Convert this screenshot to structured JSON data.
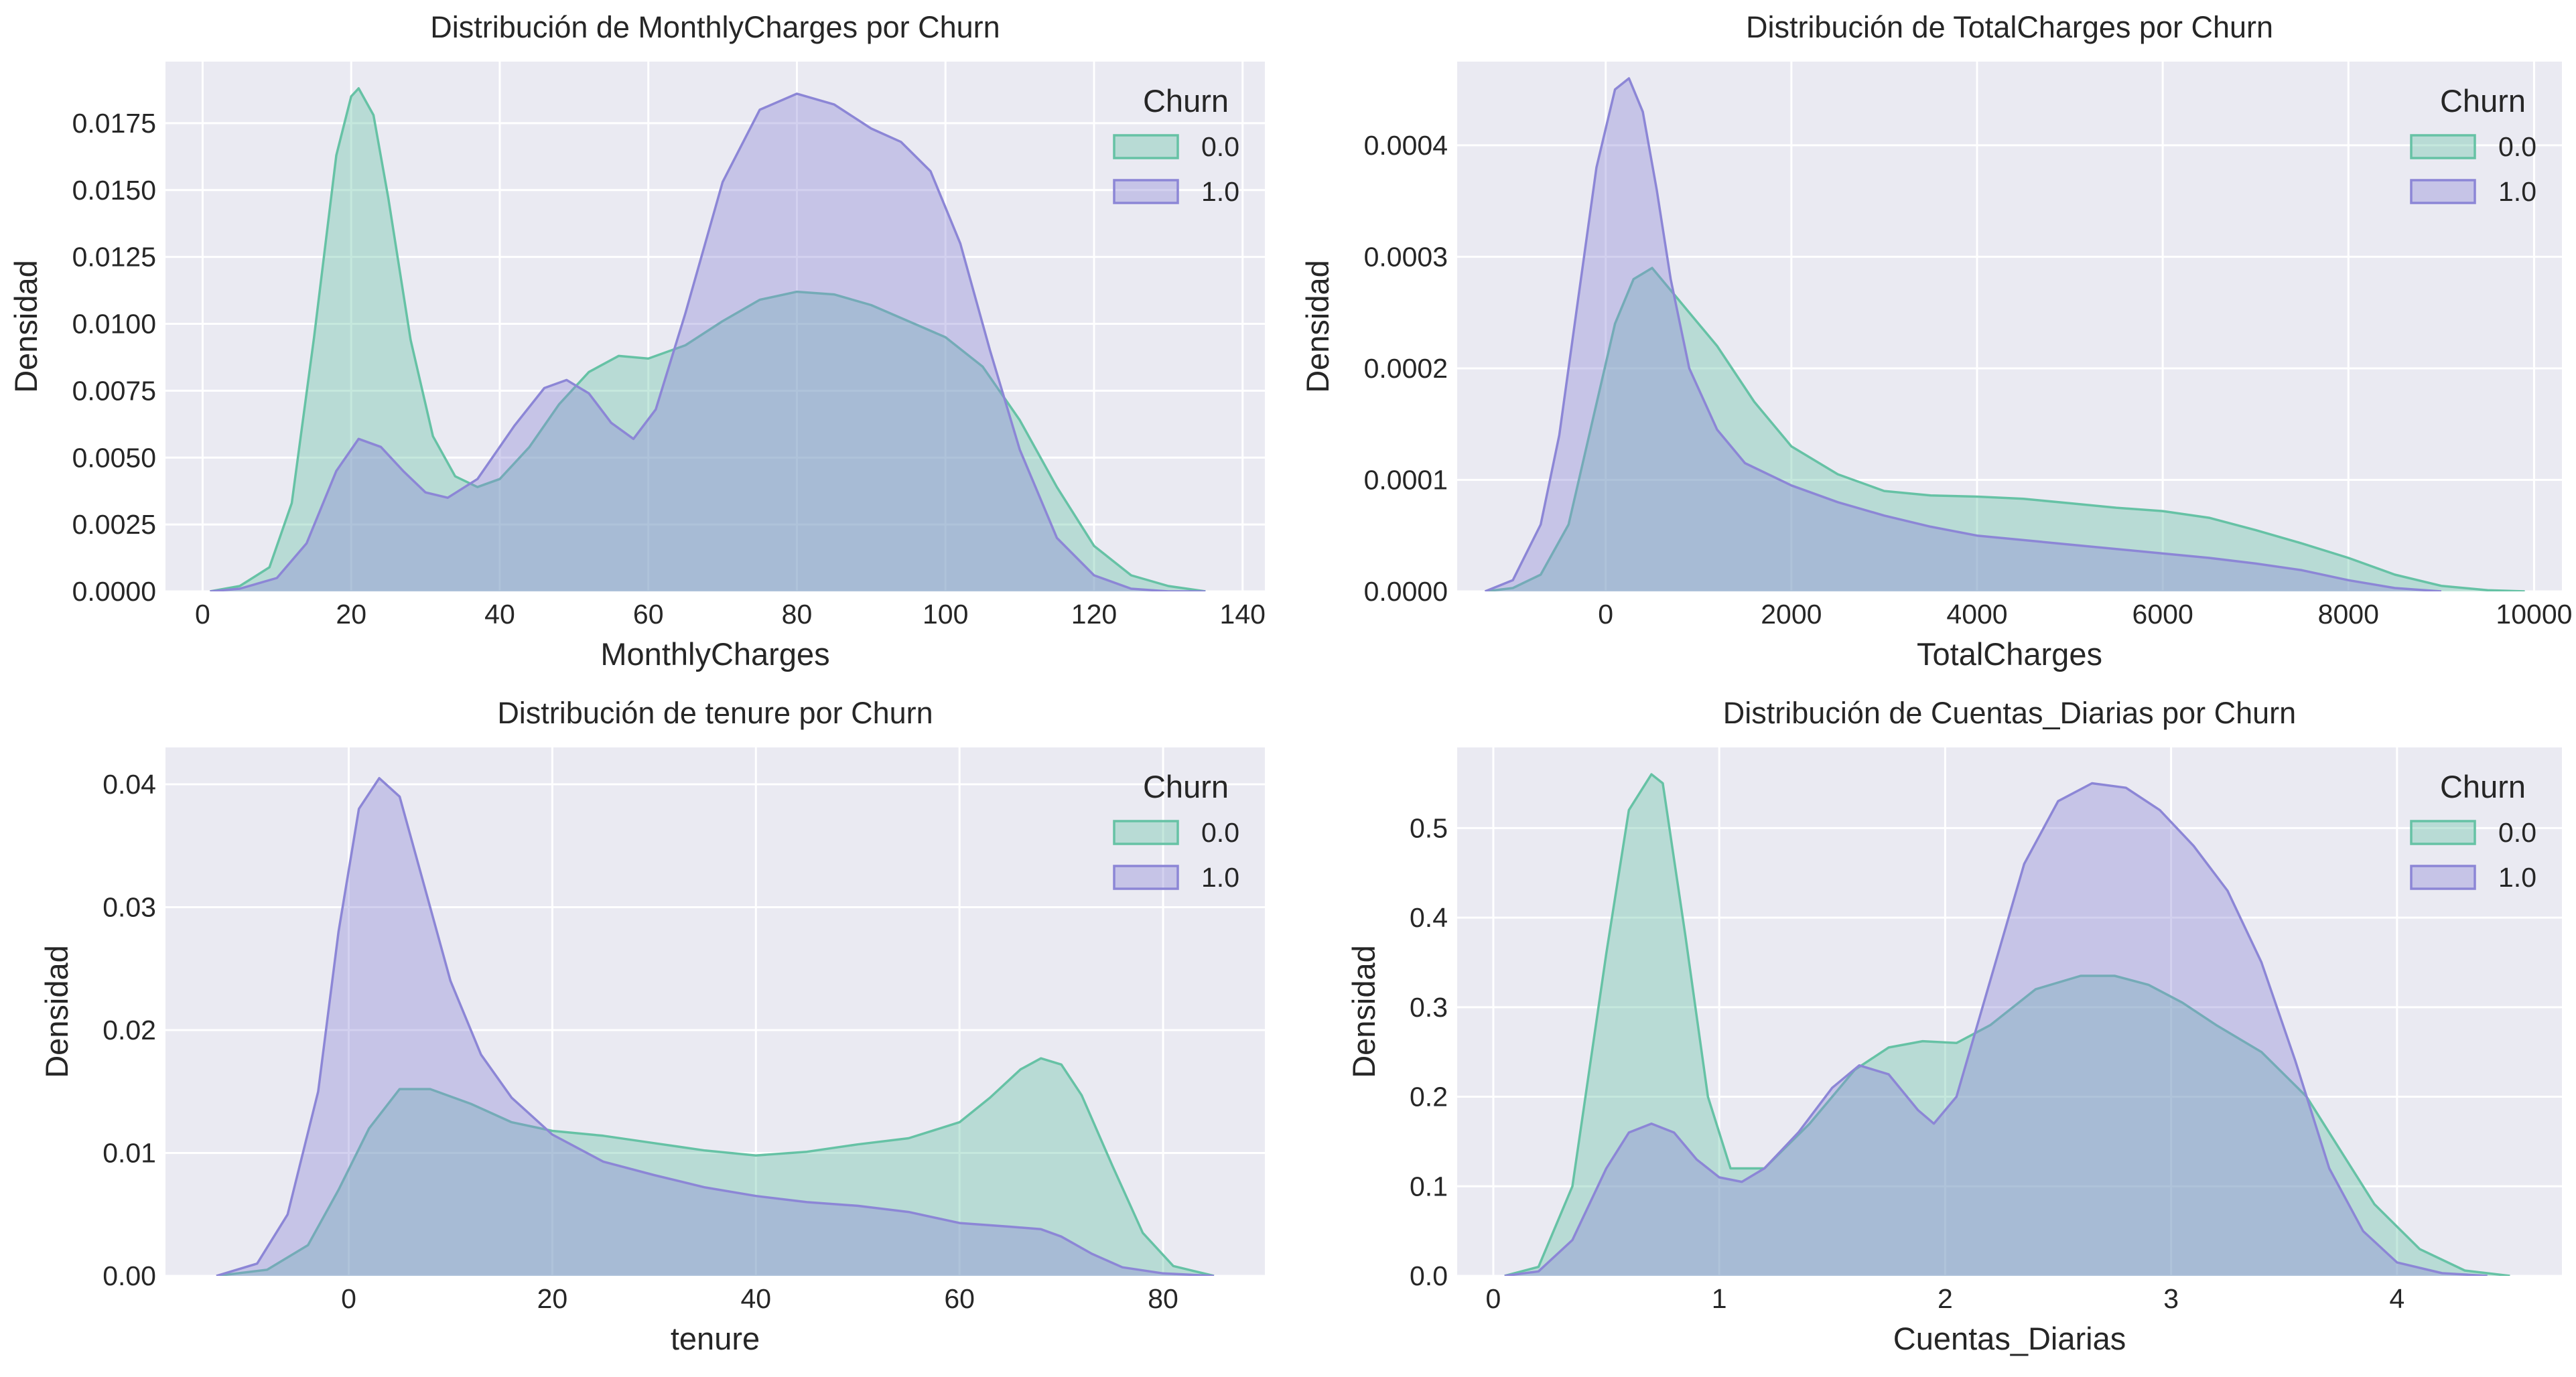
{
  "figure": {
    "colors": {
      "churn_0": "#66c2a5",
      "churn_1": "#8c86d6",
      "axes_bg": "#eaeaf2",
      "grid": "#ffffff"
    },
    "legend_title": "Churn",
    "legend_labels": [
      "0.0",
      "1.0"
    ],
    "y_label": "Densidad"
  },
  "chart_data": [
    {
      "type": "area",
      "title": "Distribución de MonthlyCharges por Churn",
      "xlabel": "MonthlyCharges",
      "ylabel": "Densidad",
      "xlim": [
        -5,
        143
      ],
      "ylim": [
        0,
        0.0198
      ],
      "xticks": [
        0,
        20,
        40,
        60,
        80,
        100,
        120,
        140
      ],
      "xtick_labels": [
        "0",
        "20",
        "40",
        "60",
        "80",
        "100",
        "120",
        "140"
      ],
      "yticks": [
        0,
        0.0025,
        0.005,
        0.0075,
        0.01,
        0.0125,
        0.015,
        0.0175
      ],
      "ytick_labels": [
        "0.0000",
        "0.0025",
        "0.0050",
        "0.0075",
        "0.0100",
        "0.0125",
        "0.0150",
        "0.0175"
      ],
      "legend": {
        "title": "Churn",
        "position": "top-right"
      },
      "series": [
        {
          "name": "0.0",
          "x": [
            1,
            5,
            9,
            12,
            15,
            18,
            20,
            21,
            23,
            25,
            28,
            31,
            34,
            37,
            40,
            44,
            48,
            52,
            56,
            60,
            65,
            70,
            75,
            80,
            85,
            90,
            95,
            100,
            105,
            110,
            115,
            120,
            125,
            130,
            135
          ],
          "y": [
            0,
            0.0002,
            0.0009,
            0.0033,
            0.0095,
            0.0163,
            0.0185,
            0.0188,
            0.0178,
            0.0147,
            0.0094,
            0.0058,
            0.0043,
            0.0039,
            0.0042,
            0.0054,
            0.007,
            0.0082,
            0.0088,
            0.0087,
            0.0092,
            0.0101,
            0.0109,
            0.0112,
            0.0111,
            0.0107,
            0.0101,
            0.0095,
            0.0084,
            0.0064,
            0.0039,
            0.0017,
            0.0006,
            0.0002,
            0
          ]
        },
        {
          "name": "1.0",
          "x": [
            1,
            5,
            10,
            14,
            18,
            21,
            24,
            27,
            30,
            33,
            37,
            42,
            46,
            49,
            52,
            55,
            58,
            61,
            65,
            70,
            75,
            80,
            85,
            90,
            94,
            98,
            102,
            106,
            110,
            115,
            120,
            125,
            130,
            135
          ],
          "y": [
            0,
            0.0001,
            0.0005,
            0.0018,
            0.0045,
            0.0057,
            0.0054,
            0.0045,
            0.0037,
            0.0035,
            0.0042,
            0.0062,
            0.0076,
            0.0079,
            0.0074,
            0.0063,
            0.0057,
            0.0068,
            0.0104,
            0.0153,
            0.018,
            0.0186,
            0.0182,
            0.0173,
            0.0168,
            0.0157,
            0.013,
            0.009,
            0.0053,
            0.002,
            0.0006,
            0.0001,
            0,
            0
          ]
        }
      ]
    },
    {
      "type": "area",
      "title": "Distribución de TotalCharges por Churn",
      "xlabel": "TotalCharges",
      "ylabel": "Densidad",
      "xlim": [
        -1600,
        10300
      ],
      "ylim": [
        0,
        0.000475
      ],
      "xticks": [
        0,
        2000,
        4000,
        6000,
        8000,
        10000
      ],
      "xtick_labels": [
        "0",
        "2000",
        "4000",
        "6000",
        "8000",
        "10000"
      ],
      "yticks": [
        0,
        0.0001,
        0.0002,
        0.0003,
        0.0004
      ],
      "ytick_labels": [
        "0.0000",
        "0.0001",
        "0.0002",
        "0.0003",
        "0.0004"
      ],
      "legend": {
        "title": "Churn",
        "position": "top-right"
      },
      "series": [
        {
          "name": "0.0",
          "x": [
            -1300,
            -1000,
            -700,
            -400,
            -150,
            100,
            300,
            500,
            700,
            900,
            1200,
            1600,
            2000,
            2500,
            3000,
            3500,
            4000,
            4500,
            5000,
            5500,
            6000,
            6500,
            7000,
            7500,
            8000,
            8500,
            9000,
            9500,
            9900
          ],
          "y": [
            0,
            3e-06,
            1.5e-05,
            6e-05,
            0.00015,
            0.00024,
            0.00028,
            0.00029,
            0.00027,
            0.00025,
            0.00022,
            0.00017,
            0.00013,
            0.000105,
            9e-05,
            8.6e-05,
            8.5e-05,
            8.3e-05,
            7.9e-05,
            7.5e-05,
            7.2e-05,
            6.6e-05,
            5.5e-05,
            4.3e-05,
            3e-05,
            1.5e-05,
            5e-06,
            1e-06,
            0
          ]
        },
        {
          "name": "1.0",
          "x": [
            -1300,
            -1000,
            -700,
            -500,
            -300,
            -100,
            100,
            250,
            400,
            550,
            700,
            900,
            1200,
            1500,
            2000,
            2500,
            3000,
            3500,
            4000,
            4500,
            5000,
            5500,
            6000,
            6500,
            7000,
            7500,
            8000,
            8500,
            9000
          ],
          "y": [
            0,
            1e-05,
            6e-05,
            0.00014,
            0.00026,
            0.00038,
            0.00045,
            0.00046,
            0.00043,
            0.00036,
            0.00028,
            0.0002,
            0.000145,
            0.000115,
            9.5e-05,
            8e-05,
            6.8e-05,
            5.8e-05,
            5e-05,
            4.6e-05,
            4.2e-05,
            3.8e-05,
            3.4e-05,
            3e-05,
            2.5e-05,
            1.9e-05,
            1e-05,
            3e-06,
            0
          ]
        }
      ]
    },
    {
      "type": "area",
      "title": "Distribución de tenure por Churn",
      "xlabel": "tenure",
      "ylabel": "Densidad",
      "xlim": [
        -18,
        90
      ],
      "ylim": [
        0,
        0.043
      ],
      "xticks": [
        0,
        20,
        40,
        60,
        80
      ],
      "xtick_labels": [
        "0",
        "20",
        "40",
        "60",
        "80"
      ],
      "yticks": [
        0,
        0.01,
        0.02,
        0.03,
        0.04
      ],
      "ytick_labels": [
        "0.00",
        "0.01",
        "0.02",
        "0.03",
        "0.04"
      ],
      "legend": {
        "title": "Churn",
        "position": "top-right"
      },
      "series": [
        {
          "name": "0.0",
          "x": [
            -13,
            -8,
            -4,
            -1,
            2,
            5,
            8,
            12,
            16,
            20,
            25,
            30,
            35,
            40,
            45,
            50,
            55,
            60,
            63,
            66,
            68,
            70,
            72,
            75,
            78,
            81,
            85
          ],
          "y": [
            0,
            0.0005,
            0.0025,
            0.007,
            0.012,
            0.0152,
            0.0152,
            0.014,
            0.0125,
            0.0118,
            0.0114,
            0.0108,
            0.0102,
            0.0098,
            0.0101,
            0.0107,
            0.0112,
            0.0125,
            0.0145,
            0.0168,
            0.0177,
            0.0172,
            0.0147,
            0.009,
            0.0035,
            0.0008,
            0
          ]
        },
        {
          "name": "1.0",
          "x": [
            -13,
            -9,
            -6,
            -3,
            -1,
            1,
            3,
            5,
            7,
            10,
            13,
            16,
            20,
            25,
            30,
            35,
            40,
            45,
            50,
            55,
            60,
            65,
            68,
            70,
            73,
            76,
            80,
            85
          ],
          "y": [
            0,
            0.001,
            0.005,
            0.015,
            0.028,
            0.038,
            0.0405,
            0.039,
            0.033,
            0.024,
            0.018,
            0.0145,
            0.0115,
            0.0093,
            0.0082,
            0.0072,
            0.0065,
            0.006,
            0.0057,
            0.0052,
            0.0043,
            0.004,
            0.0038,
            0.0032,
            0.0018,
            0.0007,
            0.0002,
            0
          ]
        }
      ]
    },
    {
      "type": "area",
      "title": "Distribución de Cuentas_Diarias por Churn",
      "xlabel": "Cuentas_Diarias",
      "ylabel": "Densidad",
      "xlim": [
        -0.16,
        4.73
      ],
      "ylim": [
        0,
        0.59
      ],
      "xticks": [
        0,
        1,
        2,
        3,
        4
      ],
      "xtick_labels": [
        "0",
        "1",
        "2",
        "3",
        "4"
      ],
      "yticks": [
        0,
        0.1,
        0.2,
        0.3,
        0.4,
        0.5
      ],
      "ytick_labels": [
        "0.0",
        "0.1",
        "0.2",
        "0.3",
        "0.4",
        "0.5"
      ],
      "legend": {
        "title": "Churn",
        "position": "top-right"
      },
      "series": [
        {
          "name": "0.0",
          "x": [
            0.05,
            0.2,
            0.35,
            0.5,
            0.6,
            0.7,
            0.75,
            0.85,
            0.95,
            1.05,
            1.2,
            1.4,
            1.6,
            1.75,
            1.9,
            2.05,
            2.2,
            2.4,
            2.6,
            2.75,
            2.9,
            3.05,
            3.2,
            3.4,
            3.6,
            3.75,
            3.9,
            4.1,
            4.3,
            4.5
          ],
          "y": [
            0,
            0.01,
            0.1,
            0.36,
            0.52,
            0.56,
            0.55,
            0.38,
            0.2,
            0.12,
            0.12,
            0.17,
            0.23,
            0.255,
            0.262,
            0.26,
            0.28,
            0.32,
            0.335,
            0.335,
            0.325,
            0.305,
            0.28,
            0.25,
            0.2,
            0.14,
            0.08,
            0.03,
            0.006,
            0
          ]
        },
        {
          "name": "1.0",
          "x": [
            0.05,
            0.2,
            0.35,
            0.5,
            0.6,
            0.7,
            0.8,
            0.9,
            1.0,
            1.1,
            1.2,
            1.35,
            1.5,
            1.62,
            1.75,
            1.88,
            1.95,
            2.05,
            2.2,
            2.35,
            2.5,
            2.65,
            2.8,
            2.95,
            3.1,
            3.25,
            3.4,
            3.55,
            3.7,
            3.85,
            4.0,
            4.2,
            4.4
          ],
          "y": [
            0,
            0.005,
            0.04,
            0.12,
            0.16,
            0.17,
            0.16,
            0.13,
            0.11,
            0.105,
            0.12,
            0.16,
            0.21,
            0.235,
            0.225,
            0.185,
            0.17,
            0.2,
            0.33,
            0.46,
            0.53,
            0.55,
            0.545,
            0.52,
            0.48,
            0.43,
            0.35,
            0.24,
            0.12,
            0.05,
            0.015,
            0.003,
            0
          ]
        }
      ]
    }
  ]
}
